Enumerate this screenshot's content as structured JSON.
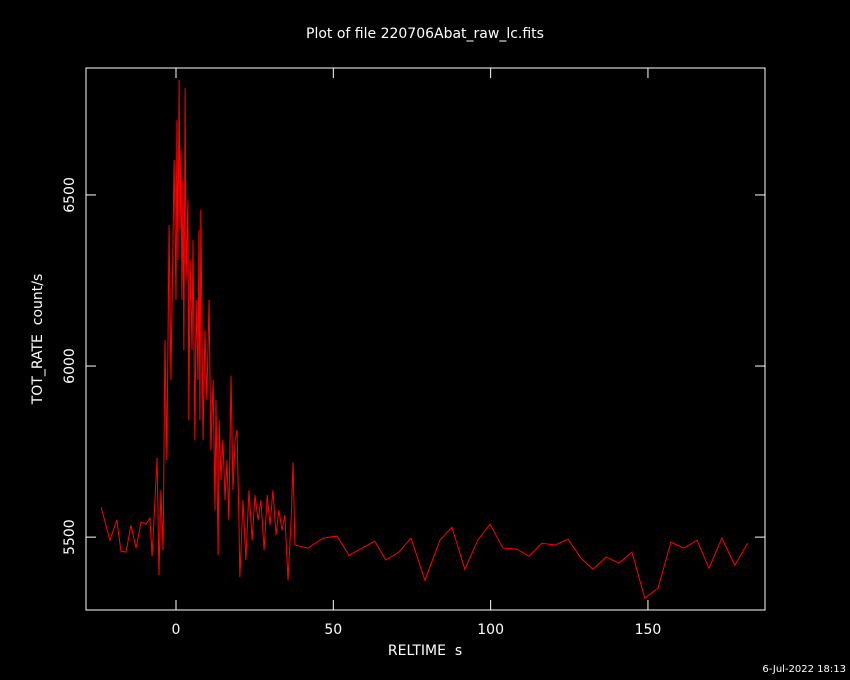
{
  "chart_data": {
    "type": "line",
    "title": "Plot of file 220706Abat_raw_lc.fits",
    "x_label": "RELTIME  s",
    "y_label": "TOT_RATE  count/s",
    "footer": "6-Jul-2022 18:13",
    "xlim": [
      -28.6,
      187.2
    ],
    "xticks": [
      0,
      50,
      100,
      150
    ],
    "ylim": [
      5287,
      6871
    ],
    "yticks": [
      5500,
      6000,
      6500
    ],
    "series": [
      {
        "name": "TOT_RATE",
        "color": "#ff0000",
        "x": [
          -23.8,
          -21,
          -18.8,
          -17.5,
          -15.9,
          -14.3,
          -12.7,
          -11.1,
          -9.5,
          -8.3,
          -7.6,
          -6,
          -5.4,
          -4.8,
          -4.1,
          -3.5,
          -2.9,
          -2.2,
          -1.6,
          -1,
          -0.6,
          0,
          0.3,
          0.6,
          1,
          1.3,
          1.6,
          1.9,
          2.2,
          2.5,
          2.9,
          3.2,
          3.8,
          4.1,
          4.5,
          5.1,
          5.4,
          6,
          6.4,
          7,
          7.3,
          7.6,
          7.9,
          8.6,
          9.2,
          9.8,
          10.5,
          11.1,
          11.8,
          12.4,
          12.7,
          13.4,
          13.7,
          14.3,
          14.9,
          15.6,
          16.2,
          16.8,
          17.5,
          18.1,
          18.8,
          19.4,
          20,
          20.3,
          21.3,
          22.2,
          23.2,
          24.2,
          25.1,
          26.1,
          27,
          28,
          29,
          29.9,
          30.8,
          31.8,
          32.7,
          33.7,
          34.6,
          35.6,
          36.6,
          37.2,
          37.8,
          42,
          46.7,
          51.2,
          55,
          63.2,
          66.7,
          70.8,
          74.7,
          79.1,
          83.9,
          87.7,
          91.8,
          95.9,
          99.8,
          103.9,
          108.4,
          112.2,
          116.3,
          120.5,
          124.6,
          128.7,
          132.5,
          136.7,
          140.8,
          144.9,
          149,
          153.2,
          157.3,
          161.4,
          165.6,
          169.4,
          173.5,
          177.6,
          181.7
        ],
        "values": [
          5588,
          5491,
          5550,
          5459,
          5456,
          5535,
          5468,
          5544,
          5538,
          5556,
          5444,
          5731,
          5389,
          5637,
          5462,
          6076,
          5725,
          6412,
          5959,
          6339,
          6602,
          6193,
          6719,
          6310,
          6836,
          6398,
          6632,
          6193,
          6544,
          6047,
          6813,
          6251,
          6485,
          5842,
          6310,
          6047,
          6368,
          5784,
          6193,
          5959,
          6398,
          5842,
          6456,
          5784,
          6105,
          5901,
          6193,
          5754,
          5959,
          5579,
          5901,
          5447,
          5842,
          5667,
          5784,
          5608,
          5725,
          5550,
          5971,
          5637,
          5784,
          5813,
          5550,
          5383,
          5608,
          5433,
          5637,
          5491,
          5623,
          5550,
          5608,
          5462,
          5623,
          5535,
          5637,
          5506,
          5579,
          5520,
          5564,
          5374,
          5550,
          5719,
          5477,
          5468,
          5497,
          5503,
          5447,
          5488,
          5433,
          5456,
          5497,
          5374,
          5491,
          5529,
          5406,
          5491,
          5538,
          5468,
          5465,
          5444,
          5482,
          5477,
          5494,
          5439,
          5406,
          5442,
          5424,
          5456,
          5322,
          5351,
          5485,
          5468,
          5491,
          5409,
          5497,
          5418,
          5482
        ]
      }
    ]
  }
}
